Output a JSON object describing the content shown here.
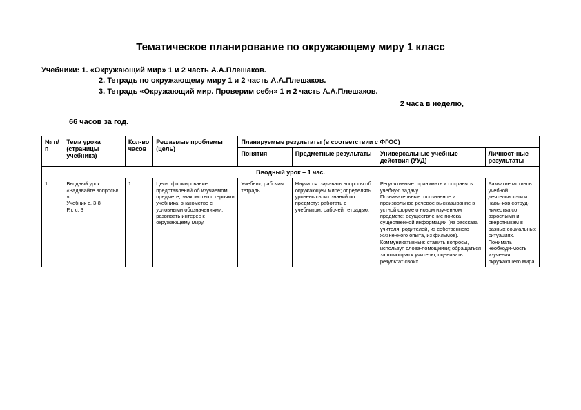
{
  "title": "Тематическое планирование по окружающему миру 1 класс",
  "textbooks": {
    "label": "Учебники:",
    "line1": "1. «Окружающий мир» 1 и 2 часть А.А.Плешаков.",
    "line2": "2. Тетрадь по окружающему миру 1 и 2 часть А.А.Плешаков.",
    "line3": "3. Тетрадь «Окружающий мир. Проверим себя» 1 и 2 часть А.А.Плешаков."
  },
  "schedule_right": "2 часа в неделю,",
  "schedule_left": "66 часов за год.",
  "headers": {
    "num": "№ п/п",
    "topic": "Тема урока (страницы учебника)",
    "hours": "Кол-во часов",
    "goal": "Решаемые проблемы (цель)",
    "results_header": "Планируемые результаты (в соответствии с ФГОС)",
    "concepts": "Понятия",
    "subject": "Предметные результаты",
    "uud": "Универсальные учебные действия (УУД)",
    "personal": "Личност-ные результаты"
  },
  "section": "Вводный урок  – 1 час.",
  "row1": {
    "num": "1",
    "topic": "Вводный урок. «Задавайте вопросы! »\nУчебник с. 3-8\nР.т. с. 3",
    "hours": "1",
    "goal": "Цель: формирование представлений об изучаемом предмете; знакомство с героями учебника; знакомство с условными обозначениями; развивать интерес к окружающему миру.",
    "concepts": "Учебник, рабочая тетрадь.",
    "subject": "Научатся: задавать вопросы об окружающем мире; определять уровень своих знаний  по предмету; работать с учебником, рабочей тетрадью.",
    "uud": "Регулятивные: принимать и сохранять учебную задачу.\nПознавательные: осознанное и произвольное речевое высказывание в устной форме о новом изученном предмете; осуществление поиска существенной информации (из рассказа учителя, родителей, из собственного жизненного опыта, из фильмов).\nКоммуникативные: ставить вопросы, используя слова-помощники; обращаться за помощью к учителю; оценивать результат своих",
    "personal": "Развитие мотивов учебной деятельнос-ти и навы-ков сотруд-ничества со взрослыми и сверстникам в разных социальных ситуациях. Понимать необходи-мость изучения окружающего мира."
  },
  "colors": {
    "text": "#000000",
    "bg": "#ffffff",
    "border": "#000000"
  }
}
